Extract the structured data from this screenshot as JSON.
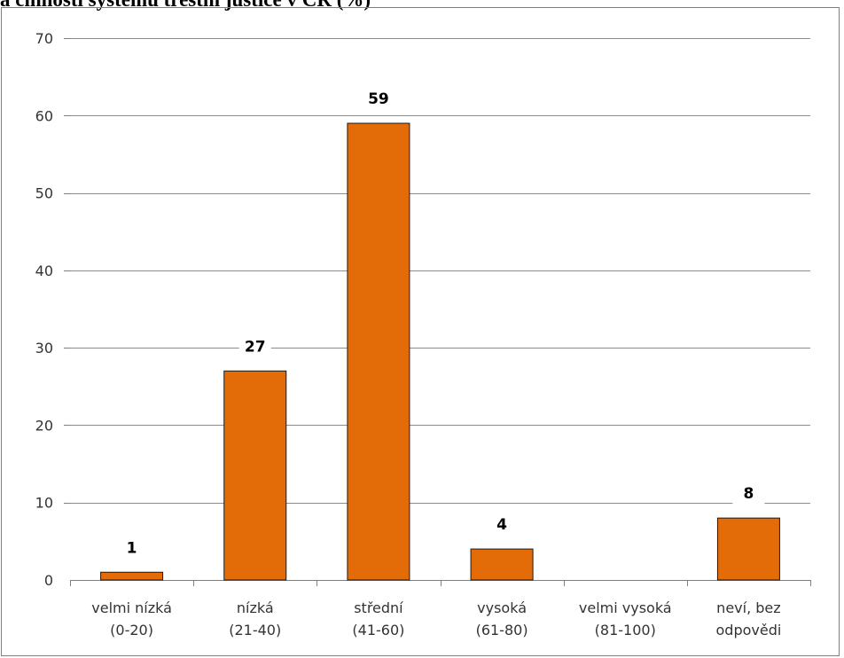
{
  "caption": "a činnosti systému trestní justice v ČR (%)",
  "chart_data": {
    "type": "bar",
    "title": "a činnosti systému trestní justice v ČR (%)",
    "xlabel": "",
    "ylabel": "",
    "ylim": [
      0,
      70
    ],
    "yticks": [
      0,
      10,
      20,
      30,
      40,
      50,
      60,
      70
    ],
    "grid": true,
    "legend": "none",
    "categories": [
      [
        "velmi nízká",
        "(0-20)"
      ],
      [
        "nízká",
        "(21-40)"
      ],
      [
        "střední",
        "(41-60)"
      ],
      [
        "vysoká",
        "(61-80)"
      ],
      [
        "velmi vysoká",
        "(81-100)"
      ],
      [
        "neví, bez",
        "odpovědi"
      ]
    ],
    "values": [
      1,
      27,
      59,
      4,
      null,
      8
    ],
    "data_labels": [
      "1",
      "27",
      "59",
      "4",
      "",
      "8"
    ],
    "colors": {
      "bar": "#E36C09",
      "bar_edge": "#1a1a1a",
      "grid": "#8c8c8c"
    }
  }
}
